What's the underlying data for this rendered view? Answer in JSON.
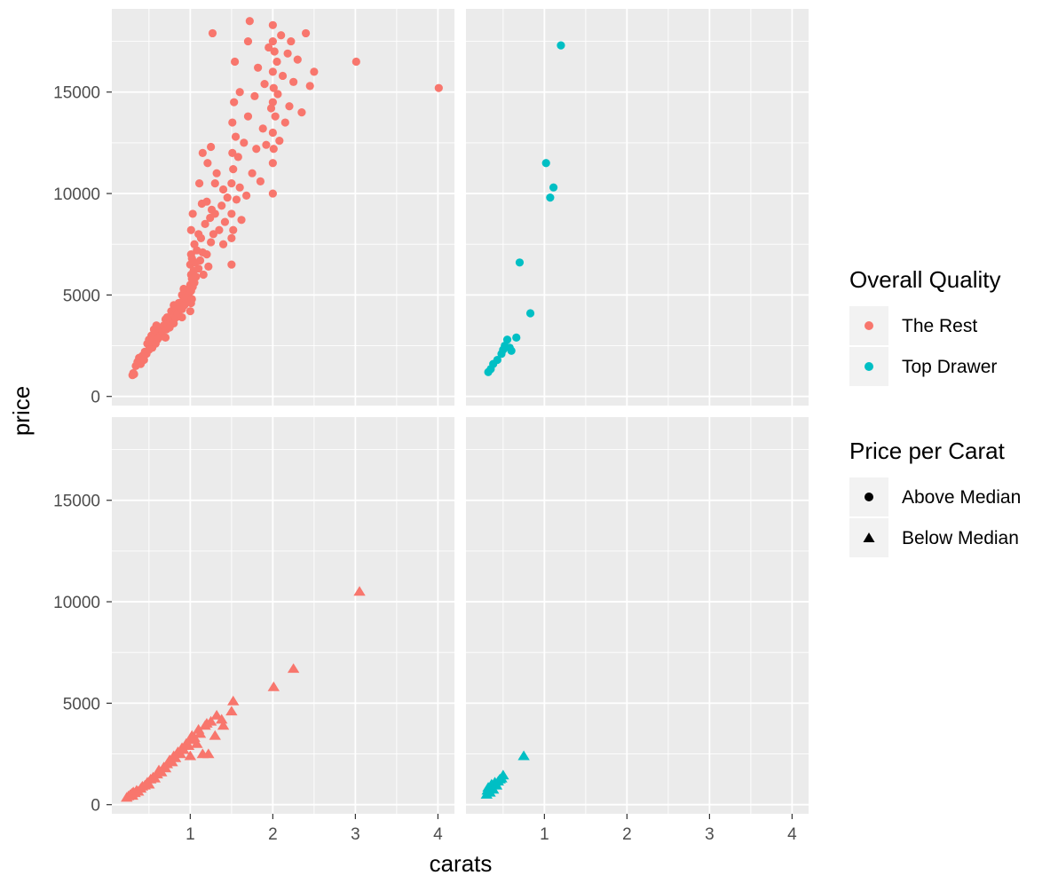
{
  "chart_data": {
    "type": "scatter",
    "layout": "facet grid 2x2 (rows: price per carat above/below median; columns: The Rest / Top Drawer)",
    "xlabel": "carats",
    "ylabel": "price",
    "xlim": [
      0.05,
      4.2
    ],
    "ylim": [
      -450,
      19100
    ],
    "x_ticks": [
      1,
      2,
      3,
      4
    ],
    "x_tick_labels": [
      "1",
      "2",
      "3",
      "4"
    ],
    "y_ticks": [
      0,
      5000,
      10000,
      15000
    ],
    "y_tick_labels": [
      "0",
      "5000",
      "10000",
      "15000"
    ],
    "grid": true,
    "legend_position": "right",
    "legends": [
      {
        "title": "Overall Quality",
        "aesthetic": "color",
        "entries": [
          {
            "label": "The Rest",
            "color": "#F8766D"
          },
          {
            "label": "Top Drawer",
            "color": "#00BFC4"
          }
        ]
      },
      {
        "title": "Price per Carat",
        "aesthetic": "shape",
        "entries": [
          {
            "label": "Above Median",
            "shape": "circle"
          },
          {
            "label": "Below Median",
            "shape": "triangle"
          }
        ]
      }
    ],
    "panels": [
      {
        "quality": "The Rest",
        "price_per_carat": "Above Median",
        "shape": "circle",
        "color": "#F8766D",
        "points": [
          [
            0.3,
            1050
          ],
          [
            0.31,
            1150
          ],
          [
            0.32,
            1100
          ],
          [
            0.34,
            1500
          ],
          [
            0.36,
            1700
          ],
          [
            0.38,
            1900
          ],
          [
            0.4,
            1600
          ],
          [
            0.42,
            2000
          ],
          [
            0.44,
            1800
          ],
          [
            0.45,
            2200
          ],
          [
            0.47,
            2100
          ],
          [
            0.48,
            2600
          ],
          [
            0.5,
            2300
          ],
          [
            0.5,
            2800
          ],
          [
            0.51,
            2500
          ],
          [
            0.52,
            2700
          ],
          [
            0.53,
            3000
          ],
          [
            0.54,
            2400
          ],
          [
            0.55,
            2900
          ],
          [
            0.56,
            3300
          ],
          [
            0.58,
            2600
          ],
          [
            0.59,
            3500
          ],
          [
            0.6,
            2800
          ],
          [
            0.61,
            3100
          ],
          [
            0.62,
            2900
          ],
          [
            0.64,
            3000
          ],
          [
            0.65,
            3400
          ],
          [
            0.66,
            3200
          ],
          [
            0.68,
            3500
          ],
          [
            0.7,
            2900
          ],
          [
            0.7,
            3800
          ],
          [
            0.71,
            3300
          ],
          [
            0.72,
            3900
          ],
          [
            0.73,
            3600
          ],
          [
            0.75,
            3400
          ],
          [
            0.76,
            3700
          ],
          [
            0.77,
            4200
          ],
          [
            0.78,
            3800
          ],
          [
            0.8,
            3600
          ],
          [
            0.8,
            4500
          ],
          [
            0.81,
            4000
          ],
          [
            0.82,
            4300
          ],
          [
            0.83,
            3900
          ],
          [
            0.85,
            4100
          ],
          [
            0.86,
            4600
          ],
          [
            0.88,
            4400
          ],
          [
            0.9,
            3900
          ],
          [
            0.9,
            4300
          ],
          [
            0.9,
            5000
          ],
          [
            0.91,
            4700
          ],
          [
            0.92,
            5300
          ],
          [
            0.93,
            4500
          ],
          [
            0.95,
            4800
          ],
          [
            0.96,
            5200
          ],
          [
            0.98,
            5000
          ],
          [
            1.0,
            4200
          ],
          [
            1.0,
            5500
          ],
          [
            1.0,
            6500
          ],
          [
            1.01,
            4600
          ],
          [
            1.01,
            5200
          ],
          [
            1.01,
            6000
          ],
          [
            1.01,
            7000
          ],
          [
            1.01,
            8200
          ],
          [
            1.02,
            4800
          ],
          [
            1.02,
            5800
          ],
          [
            1.02,
            6800
          ],
          [
            1.03,
            5400
          ],
          [
            1.03,
            9000
          ],
          [
            1.04,
            6200
          ],
          [
            1.05,
            5600
          ],
          [
            1.05,
            7500
          ],
          [
            1.06,
            6600
          ],
          [
            1.07,
            5900
          ],
          [
            1.08,
            7200
          ],
          [
            1.1,
            6300
          ],
          [
            1.1,
            8000
          ],
          [
            1.11,
            10500
          ],
          [
            1.12,
            6700
          ],
          [
            1.13,
            7800
          ],
          [
            1.14,
            9500
          ],
          [
            1.15,
            7100
          ],
          [
            1.15,
            12000
          ],
          [
            1.16,
            6000
          ],
          [
            1.18,
            8500
          ],
          [
            1.2,
            7000
          ],
          [
            1.2,
            9600
          ],
          [
            1.21,
            11500
          ],
          [
            1.22,
            6400
          ],
          [
            1.24,
            8800
          ],
          [
            1.25,
            7600
          ],
          [
            1.25,
            12300
          ],
          [
            1.26,
            9200
          ],
          [
            1.27,
            17900
          ],
          [
            1.28,
            8000
          ],
          [
            1.3,
            9000
          ],
          [
            1.3,
            10500
          ],
          [
            1.32,
            11000
          ],
          [
            1.35,
            8200
          ],
          [
            1.38,
            9400
          ],
          [
            1.4,
            7500
          ],
          [
            1.4,
            10200
          ],
          [
            1.42,
            8600
          ],
          [
            1.45,
            9800
          ],
          [
            1.5,
            6500
          ],
          [
            1.5,
            7800
          ],
          [
            1.5,
            9000
          ],
          [
            1.5,
            10500
          ],
          [
            1.51,
            12000
          ],
          [
            1.51,
            13500
          ],
          [
            1.52,
            8200
          ],
          [
            1.52,
            11200
          ],
          [
            1.53,
            14500
          ],
          [
            1.54,
            16500
          ],
          [
            1.55,
            12800
          ],
          [
            1.56,
            9700
          ],
          [
            1.58,
            11800
          ],
          [
            1.6,
            10300
          ],
          [
            1.6,
            15000
          ],
          [
            1.62,
            8700
          ],
          [
            1.65,
            12500
          ],
          [
            1.68,
            9900
          ],
          [
            1.7,
            13800
          ],
          [
            1.7,
            17500
          ],
          [
            1.72,
            18500
          ],
          [
            1.75,
            11000
          ],
          [
            1.78,
            14800
          ],
          [
            1.8,
            12200
          ],
          [
            1.82,
            16200
          ],
          [
            1.85,
            10600
          ],
          [
            1.88,
            13200
          ],
          [
            1.9,
            15400
          ],
          [
            1.92,
            12400
          ],
          [
            1.95,
            17200
          ],
          [
            1.98,
            14200
          ],
          [
            2.0,
            10000
          ],
          [
            2.0,
            11500
          ],
          [
            2.0,
            13000
          ],
          [
            2.0,
            14500
          ],
          [
            2.0,
            16000
          ],
          [
            2.0,
            17500
          ],
          [
            2.0,
            18300
          ],
          [
            2.01,
            12200
          ],
          [
            2.01,
            15200
          ],
          [
            2.02,
            17000
          ],
          [
            2.03,
            13800
          ],
          [
            2.05,
            16500
          ],
          [
            2.06,
            14900
          ],
          [
            2.08,
            12600
          ],
          [
            2.1,
            17800
          ],
          [
            2.12,
            15800
          ],
          [
            2.15,
            13500
          ],
          [
            2.18,
            16900
          ],
          [
            2.2,
            14300
          ],
          [
            2.22,
            17500
          ],
          [
            2.25,
            15500
          ],
          [
            2.3,
            16600
          ],
          [
            2.35,
            14000
          ],
          [
            2.4,
            17900
          ],
          [
            2.45,
            15300
          ],
          [
            2.5,
            16000
          ],
          [
            3.01,
            16500
          ],
          [
            4.01,
            15200
          ]
        ]
      },
      {
        "quality": "Top Drawer",
        "price_per_carat": "Above Median",
        "shape": "circle",
        "color": "#00BFC4",
        "points": [
          [
            0.32,
            1200
          ],
          [
            0.35,
            1350
          ],
          [
            0.38,
            1600
          ],
          [
            0.43,
            1800
          ],
          [
            0.48,
            2100
          ],
          [
            0.5,
            2300
          ],
          [
            0.52,
            2500
          ],
          [
            0.55,
            2800
          ],
          [
            0.58,
            2400
          ],
          [
            0.6,
            2250
          ],
          [
            0.66,
            2900
          ],
          [
            0.7,
            6600
          ],
          [
            0.83,
            4100
          ],
          [
            1.02,
            11500
          ],
          [
            1.07,
            9800
          ],
          [
            1.11,
            10300
          ],
          [
            1.2,
            17300
          ]
        ]
      },
      {
        "quality": "The Rest",
        "price_per_carat": "Below Median",
        "shape": "triangle",
        "color": "#F8766D",
        "points": [
          [
            0.23,
            350
          ],
          [
            0.25,
            420
          ],
          [
            0.27,
            480
          ],
          [
            0.29,
            550
          ],
          [
            0.3,
            450
          ],
          [
            0.31,
            620
          ],
          [
            0.33,
            580
          ],
          [
            0.35,
            700
          ],
          [
            0.37,
            650
          ],
          [
            0.4,
            800
          ],
          [
            0.42,
            900
          ],
          [
            0.45,
            950
          ],
          [
            0.48,
            1100
          ],
          [
            0.5,
            1000
          ],
          [
            0.52,
            1250
          ],
          [
            0.55,
            1350
          ],
          [
            0.57,
            1300
          ],
          [
            0.6,
            1500
          ],
          [
            0.62,
            1700
          ],
          [
            0.65,
            1600
          ],
          [
            0.68,
            1850
          ],
          [
            0.7,
            1800
          ],
          [
            0.72,
            2000
          ],
          [
            0.75,
            2200
          ],
          [
            0.78,
            2100
          ],
          [
            0.8,
            2400
          ],
          [
            0.82,
            2300
          ],
          [
            0.85,
            2600
          ],
          [
            0.88,
            2500
          ],
          [
            0.9,
            2800
          ],
          [
            0.92,
            2700
          ],
          [
            0.95,
            3000
          ],
          [
            0.98,
            2900
          ],
          [
            1.0,
            3200
          ],
          [
            1.0,
            2400
          ],
          [
            1.02,
            3400
          ],
          [
            1.05,
            3300
          ],
          [
            1.08,
            3000
          ],
          [
            1.1,
            3700
          ],
          [
            1.12,
            3500
          ],
          [
            1.15,
            2500
          ],
          [
            1.18,
            3900
          ],
          [
            1.2,
            4000
          ],
          [
            1.22,
            2500
          ],
          [
            1.25,
            4100
          ],
          [
            1.3,
            3400
          ],
          [
            1.32,
            4400
          ],
          [
            1.38,
            4200
          ],
          [
            1.4,
            3900
          ],
          [
            1.5,
            4600
          ],
          [
            1.52,
            5100
          ],
          [
            2.01,
            5800
          ],
          [
            2.25,
            6700
          ],
          [
            3.05,
            10500
          ]
        ]
      },
      {
        "quality": "Top Drawer",
        "price_per_carat": "Below Median",
        "shape": "triangle",
        "color": "#00BFC4",
        "points": [
          [
            0.3,
            500
          ],
          [
            0.31,
            700
          ],
          [
            0.32,
            850
          ],
          [
            0.34,
            600
          ],
          [
            0.35,
            900
          ],
          [
            0.36,
            1000
          ],
          [
            0.38,
            750
          ],
          [
            0.4,
            1100
          ],
          [
            0.42,
            950
          ],
          [
            0.44,
            1150
          ],
          [
            0.46,
            1250
          ],
          [
            0.48,
            1300
          ],
          [
            0.5,
            1450
          ],
          [
            0.75,
            2400
          ]
        ]
      }
    ]
  }
}
